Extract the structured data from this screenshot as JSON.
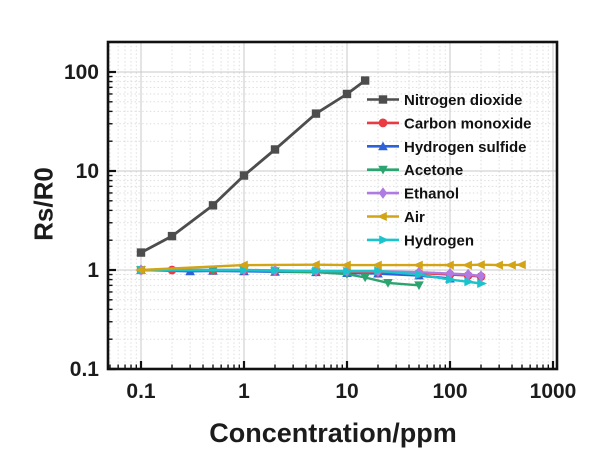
{
  "chart_data": {
    "type": "line",
    "title": "",
    "xlabel": "Concentration/ppm",
    "ylabel": "Rs/R0",
    "x_scale": "log",
    "y_scale": "log",
    "xlim": [
      0.048,
      1100
    ],
    "ylim": [
      0.1,
      202
    ],
    "grid": {
      "major": true,
      "minor": true
    },
    "legend_position": "inside-top-right",
    "x_ticks": {
      "values": [
        0.1,
        1,
        10,
        100,
        1000
      ],
      "labels": [
        "0.1",
        "1",
        "10",
        "100",
        "1000"
      ]
    },
    "y_ticks": {
      "values": [
        0.1,
        1,
        10,
        100
      ],
      "labels": [
        "0.1",
        "1",
        "10",
        "100"
      ]
    },
    "series": [
      {
        "name": "Nitrogen dioxide",
        "color": "#4d4d4d",
        "marker": "square",
        "x": [
          0.1,
          0.2,
          0.5,
          1,
          2,
          5,
          10,
          15
        ],
        "y": [
          1.5,
          2.2,
          4.5,
          9,
          16.5,
          38,
          60,
          82
        ]
      },
      {
        "name": "Carbon monoxide",
        "color": "#ea3b43",
        "marker": "circle",
        "x": [
          0.1,
          0.2,
          0.5,
          1,
          2,
          5,
          10,
          20,
          50,
          100,
          150,
          200
        ],
        "y": [
          1.0,
          1.0,
          0.99,
          0.99,
          0.98,
          0.97,
          0.96,
          0.95,
          0.93,
          0.9,
          0.88,
          0.86
        ]
      },
      {
        "name": "Hydrogen sulfide",
        "color": "#2b62d9",
        "marker": "triangle-up",
        "x": [
          0.1,
          0.3,
          0.5,
          1,
          2,
          5,
          10,
          20,
          50,
          100
        ],
        "y": [
          1.0,
          0.97,
          0.98,
          0.97,
          0.96,
          0.95,
          0.93,
          0.92,
          0.88,
          0.82
        ]
      },
      {
        "name": "Acetone",
        "color": "#2ca470",
        "marker": "triangle-down",
        "x": [
          0.1,
          0.5,
          1,
          2,
          5,
          10,
          15,
          25,
          50
        ],
        "y": [
          1.0,
          0.99,
          1.0,
          0.97,
          0.95,
          0.91,
          0.84,
          0.74,
          0.7
        ]
      },
      {
        "name": "Ethanol",
        "color": "#b07ae3",
        "marker": "diamond",
        "x": [
          0.1,
          1,
          2,
          5,
          10,
          20,
          50,
          100,
          150,
          200
        ],
        "y": [
          1.0,
          1.0,
          0.99,
          0.98,
          0.98,
          0.97,
          0.95,
          0.92,
          0.9,
          0.87
        ]
      },
      {
        "name": "Air",
        "color": "#d3a416",
        "marker": "triangle-left",
        "x": [
          0.1,
          1,
          5,
          10,
          20,
          50,
          100,
          150,
          200,
          300,
          400,
          500
        ],
        "y": [
          1.0,
          1.12,
          1.13,
          1.12,
          1.12,
          1.12,
          1.12,
          1.12,
          1.13,
          1.12,
          1.12,
          1.13
        ]
      },
      {
        "name": "Hydrogen",
        "color": "#1bc4cd",
        "marker": "triangle-right",
        "x": [
          0.1,
          1,
          2,
          5,
          10,
          20,
          50,
          100,
          150,
          200
        ],
        "y": [
          1.0,
          1.0,
          0.99,
          0.98,
          0.97,
          0.98,
          0.9,
          0.8,
          0.76,
          0.73
        ]
      }
    ]
  }
}
